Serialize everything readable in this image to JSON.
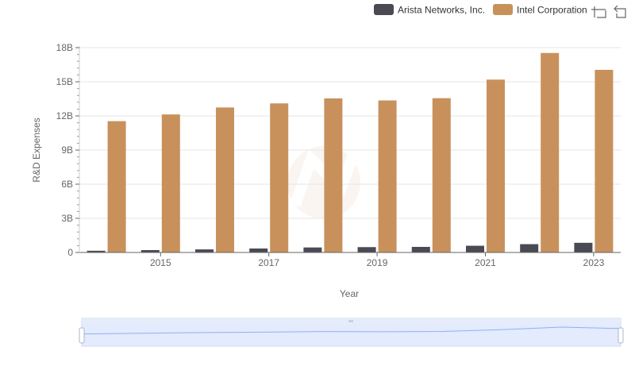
{
  "toolbox": {
    "zoom_icon": "zoom-select-icon",
    "restore_icon": "restore-icon"
  },
  "colors": {
    "arista": "#4a4a55",
    "intel": "#c8915c",
    "grid": "#e6e6e6",
    "axis": "#666666",
    "slider_fill": "#d7e3fb",
    "slider_border": "#c9d4ea",
    "slider_line": "#8fb0f7"
  },
  "chart_data": {
    "type": "bar",
    "xlabel": "Year",
    "ylabel": "R&D Expenses",
    "categories": [
      "2014",
      "2015",
      "2016",
      "2017",
      "2018",
      "2019",
      "2020",
      "2021",
      "2022",
      "2023"
    ],
    "x_tick_labels": [
      "2015",
      "2017",
      "2019",
      "2021",
      "2023"
    ],
    "y_tick_labels": [
      "0",
      "3B",
      "6B",
      "9B",
      "12B",
      "15B",
      "18B"
    ],
    "y_ticks": [
      0,
      3000000000,
      6000000000,
      9000000000,
      12000000000,
      15000000000,
      18000000000
    ],
    "ylim": [
      0,
      18000000000
    ],
    "grid": true,
    "legend_position": "top-right",
    "series": [
      {
        "name": "Arista Networks, Inc.",
        "color": "#4a4a55",
        "values": [
          150000000,
          210000000,
          270000000,
          350000000,
          440000000,
          470000000,
          490000000,
          590000000,
          730000000,
          850000000
        ]
      },
      {
        "name": "Intel Corporation",
        "color": "#c8915c",
        "values": [
          11540000000,
          12130000000,
          12740000000,
          13100000000,
          13540000000,
          13360000000,
          13560000000,
          15190000000,
          17530000000,
          16050000000
        ]
      }
    ]
  }
}
